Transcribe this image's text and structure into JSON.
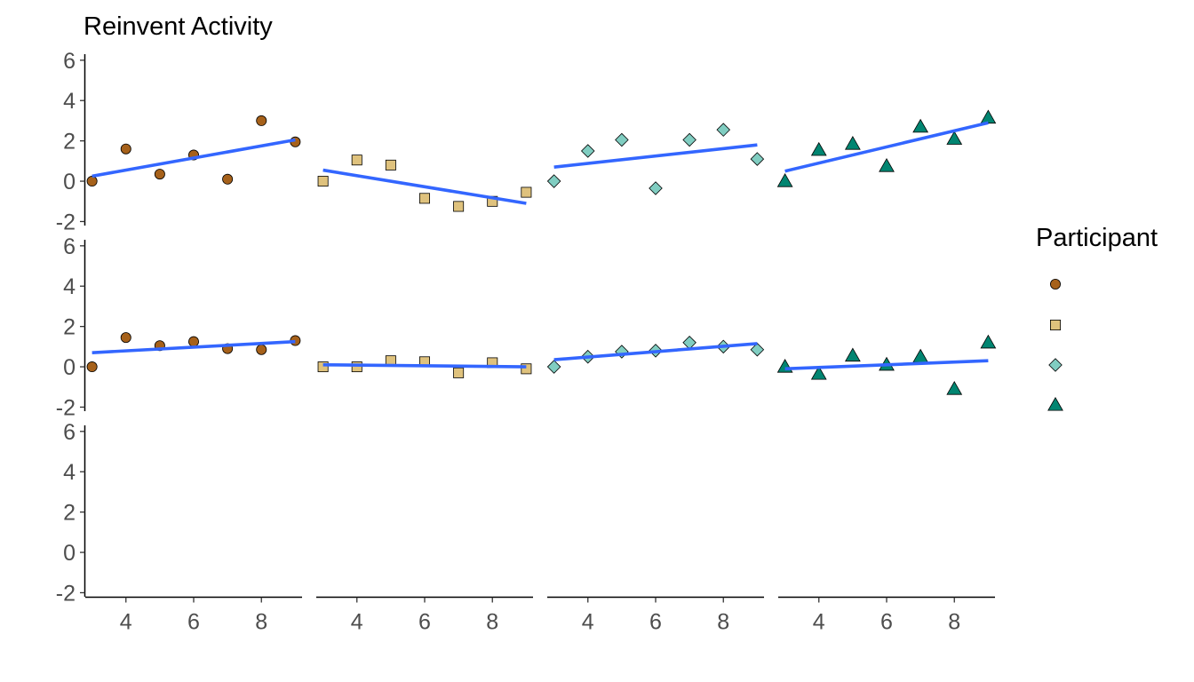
{
  "chart_data": {
    "type": "scatter",
    "title": "Reinvent Activity",
    "legend": {
      "title": "Participant",
      "position": "right"
    },
    "x_ticks": [
      4,
      6,
      8
    ],
    "y_ticks": [
      -2,
      0,
      2,
      4,
      6
    ],
    "xlim": [
      2.8,
      9.2
    ],
    "ylim": [
      -2.2,
      6.3
    ],
    "grid": false,
    "fit_line_color": "#3366FF",
    "series": [
      {
        "shape": "circle",
        "fill": "#A6611A"
      },
      {
        "shape": "square",
        "fill": "#DFC27D"
      },
      {
        "shape": "diamond",
        "fill": "#80CDC1"
      },
      {
        "shape": "triangle",
        "fill": "#018571"
      }
    ],
    "panels": [
      {
        "row": 1,
        "points": [
          [
            [
              3,
              0.0
            ],
            [
              4,
              1.6
            ],
            [
              5,
              0.35
            ],
            [
              6,
              1.3
            ],
            [
              7,
              0.1
            ],
            [
              8,
              3.0
            ],
            [
              9,
              1.95
            ]
          ],
          [
            [
              3,
              0.0
            ],
            [
              4,
              1.05
            ],
            [
              5,
              0.8
            ],
            [
              6,
              -0.85
            ],
            [
              7,
              -1.25
            ],
            [
              8,
              -1.0
            ],
            [
              9,
              -0.55
            ]
          ],
          [
            [
              3,
              0.0
            ],
            [
              4,
              1.5
            ],
            [
              5,
              2.05
            ],
            [
              6,
              -0.35
            ],
            [
              7,
              2.05
            ],
            [
              8,
              2.55
            ],
            [
              9,
              1.1
            ]
          ],
          [
            [
              3,
              0.0
            ],
            [
              4,
              1.55
            ],
            [
              5,
              1.85
            ],
            [
              6,
              0.75
            ],
            [
              7,
              2.7
            ],
            [
              8,
              2.1
            ],
            [
              9,
              3.15
            ]
          ]
        ],
        "fits": [
          [
            [
              3,
              0.25
            ],
            [
              9,
              2.05
            ]
          ],
          [
            [
              3,
              0.55
            ],
            [
              9,
              -1.1
            ]
          ],
          [
            [
              3,
              0.7
            ],
            [
              9,
              1.8
            ]
          ],
          [
            [
              3,
              0.5
            ],
            [
              9,
              2.9
            ]
          ]
        ]
      },
      {
        "row": 2,
        "points": [
          [
            [
              3,
              0.0
            ],
            [
              4,
              1.45
            ],
            [
              5,
              1.05
            ],
            [
              6,
              1.25
            ],
            [
              7,
              0.9
            ],
            [
              8,
              0.85
            ],
            [
              9,
              1.3
            ]
          ],
          [
            [
              3,
              0.0
            ],
            [
              4,
              0.0
            ],
            [
              5,
              0.3
            ],
            [
              6,
              0.25
            ],
            [
              7,
              -0.3
            ],
            [
              8,
              0.2
            ],
            [
              9,
              -0.1
            ]
          ],
          [
            [
              3,
              0.0
            ],
            [
              4,
              0.5
            ],
            [
              5,
              0.75
            ],
            [
              6,
              0.8
            ],
            [
              7,
              1.2
            ],
            [
              8,
              1.0
            ],
            [
              9,
              0.85
            ]
          ],
          [
            [
              3,
              0.0
            ],
            [
              4,
              -0.35
            ],
            [
              5,
              0.55
            ],
            [
              6,
              0.1
            ],
            [
              7,
              0.5
            ],
            [
              8,
              -1.1
            ],
            [
              9,
              1.2
            ]
          ]
        ],
        "fits": [
          [
            [
              3,
              0.7
            ],
            [
              9,
              1.25
            ]
          ],
          [
            [
              3,
              0.1
            ],
            [
              9,
              0.0
            ]
          ],
          [
            [
              3,
              0.35
            ],
            [
              9,
              1.15
            ]
          ],
          [
            [
              3,
              -0.1
            ],
            [
              9,
              0.3
            ]
          ]
        ]
      },
      {
        "row": 3,
        "points": [
          [],
          [],
          [],
          []
        ],
        "fits": []
      }
    ]
  }
}
